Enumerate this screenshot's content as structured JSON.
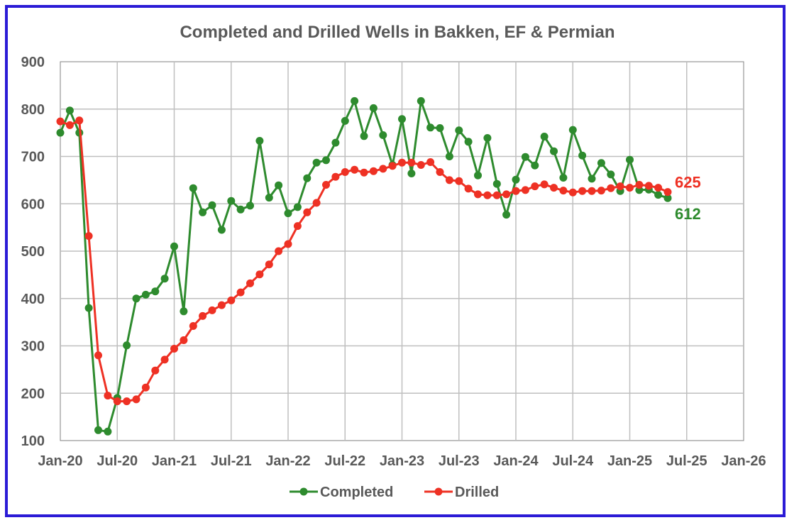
{
  "chart_data": {
    "type": "line",
    "title": "Completed and Drilled Wells in Bakken, EF & Permian",
    "xlabel": "",
    "ylabel": "",
    "ylim": [
      100,
      900
    ],
    "yticks": [
      "100",
      "200",
      "300",
      "400",
      "500",
      "600",
      "700",
      "800",
      "900"
    ],
    "xlim": [
      "2020-01",
      "2026-01"
    ],
    "xticks": [
      "Jan-20",
      "Jul-20",
      "Jan-21",
      "Jul-21",
      "Jan-22",
      "Jul-22",
      "Jan-23",
      "Jul-23",
      "Jan-24",
      "Jul-24",
      "Jan-25",
      "Jul-25",
      "Jan-26"
    ],
    "x_start_month": "2020-01",
    "grid": true,
    "legend_position": "bottom",
    "colors": {
      "completed": "#2e8b2e",
      "drilled": "#ee3124",
      "frame": "#2b1bd6",
      "grid": "#bfbfbf",
      "text": "#595959"
    },
    "series": [
      {
        "name": "Completed",
        "color": "#2e8b2e",
        "end_label": "612",
        "values": [
          750,
          797,
          750,
          380,
          122,
          119,
          190,
          301,
          400,
          408,
          415,
          442,
          510,
          373,
          633,
          582,
          597,
          545,
          606,
          588,
          596,
          733,
          613,
          639,
          580,
          593,
          654,
          687,
          692,
          729,
          775,
          817,
          743,
          802,
          745,
          682,
          779,
          664,
          817,
          761,
          760,
          700,
          755,
          731,
          660,
          739,
          642,
          577,
          651,
          699,
          681,
          742,
          711,
          655,
          756,
          702,
          653,
          686,
          662,
          627,
          693,
          629,
          630,
          619,
          612
        ]
      },
      {
        "name": "Drilled",
        "color": "#ee3124",
        "end_label": "625",
        "values": [
          774,
          766,
          776,
          532,
          280,
          195,
          183,
          183,
          187,
          212,
          248,
          271,
          294,
          312,
          342,
          363,
          375,
          386,
          396,
          413,
          432,
          451,
          472,
          500,
          515,
          553,
          582,
          602,
          640,
          657,
          667,
          672,
          666,
          669,
          674,
          680,
          687,
          687,
          682,
          688,
          667,
          650,
          648,
          632,
          620,
          618,
          618,
          620,
          627,
          629,
          637,
          641,
          634,
          628,
          624,
          627,
          627,
          628,
          633,
          637,
          634,
          640,
          638,
          634,
          625
        ]
      }
    ]
  }
}
